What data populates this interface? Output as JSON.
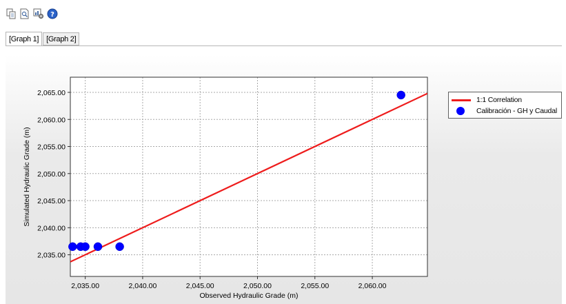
{
  "toolbar": {
    "buttons": [
      {
        "icon": "copy-page-icon"
      },
      {
        "icon": "print-preview-icon"
      },
      {
        "icon": "chart-settings-icon"
      },
      {
        "icon": "help-icon"
      }
    ]
  },
  "tabs": [
    {
      "label": "[Graph 1]",
      "active": true
    },
    {
      "label": "[Graph 2]",
      "active": false
    }
  ],
  "legend": {
    "items": [
      {
        "label": "1:1 Correlation",
        "color": "#ee1c1c",
        "kind": "line"
      },
      {
        "label": "Calibración - GH y Caudal",
        "color": "#0000ff",
        "kind": "dot"
      }
    ]
  },
  "chart_data": {
    "type": "scatter",
    "title": "",
    "xlabel": "Observed Hydraulic Grade (m)",
    "ylabel": "Simulated Hydraulic Grade (m)",
    "xlim": [
      2033.7,
      2064.8
    ],
    "ylim": [
      2031.0,
      2067.8
    ],
    "x_ticks": [
      2035,
      2040,
      2045,
      2050,
      2055,
      2060
    ],
    "x_tick_labels": [
      "2,035.00",
      "2,040.00",
      "2,045.00",
      "2,050.00",
      "2,055.00",
      "2,060.00"
    ],
    "y_ticks": [
      2035,
      2040,
      2045,
      2050,
      2055,
      2060,
      2065
    ],
    "y_tick_labels": [
      "2,035.00",
      "2,040.00",
      "2,045.00",
      "2,050.00",
      "2,055.00",
      "2,060.00",
      "2,065.00"
    ],
    "grid": true,
    "legend_position": "right",
    "series": [
      {
        "name": "1:1 Correlation",
        "type": "line",
        "color": "#ee1c1c",
        "points": [
          [
            2033.7,
            2033.7
          ],
          [
            2064.8,
            2064.8
          ]
        ]
      },
      {
        "name": "Calibración - GH y Caudal",
        "type": "scatter",
        "color": "#0000ff",
        "points": [
          [
            2033.9,
            2036.5
          ],
          [
            2034.6,
            2036.5
          ],
          [
            2035.0,
            2036.5
          ],
          [
            2036.1,
            2036.5
          ],
          [
            2038.0,
            2036.5
          ],
          [
            2062.5,
            2064.5
          ]
        ]
      }
    ]
  }
}
